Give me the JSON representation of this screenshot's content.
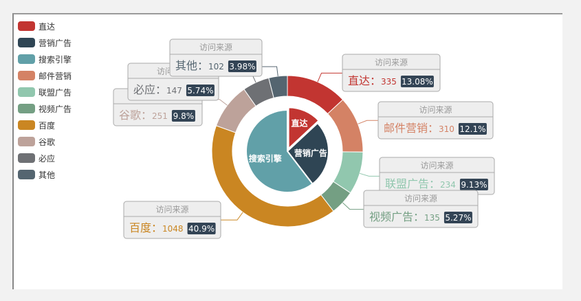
{
  "chart_data": {
    "type": "pie",
    "subtype": "nested-donut",
    "series_name": "访问来源",
    "legend": [
      "直达",
      "营销广告",
      "搜索引擎",
      "邮件营销",
      "联盟广告",
      "视频广告",
      "百度",
      "谷歌",
      "必应",
      "其他"
    ],
    "colors": {
      "直达": "#c23531",
      "营销广告": "#2f4554",
      "搜索引擎": "#61a0a8",
      "邮件营销": "#d48265",
      "联盟广告": "#91c7ae",
      "视频广告": "#749f83",
      "百度": "#ca8622",
      "谷歌": "#bda29a",
      "必应": "#6e7074",
      "其他": "#546570"
    },
    "inner": [
      {
        "name": "直达",
        "value": 335
      },
      {
        "name": "营销广告",
        "value": 679
      },
      {
        "name": "搜索引擎",
        "value": 1548
      }
    ],
    "outer": [
      {
        "name": "直达",
        "value": 335,
        "percent": "13.08%"
      },
      {
        "name": "邮件营销",
        "value": 310,
        "percent": "12.1%"
      },
      {
        "name": "联盟广告",
        "value": 234,
        "percent": "9.13%"
      },
      {
        "name": "视频广告",
        "value": 135,
        "percent": "5.27%"
      },
      {
        "name": "百度",
        "value": 1048,
        "percent": "40.9%"
      },
      {
        "name": "谷歌",
        "value": 251,
        "percent": "9.8%"
      },
      {
        "name": "必应",
        "value": 147,
        "percent": "5.74%"
      },
      {
        "name": "其他",
        "value": 102,
        "percent": "3.98%"
      }
    ]
  }
}
